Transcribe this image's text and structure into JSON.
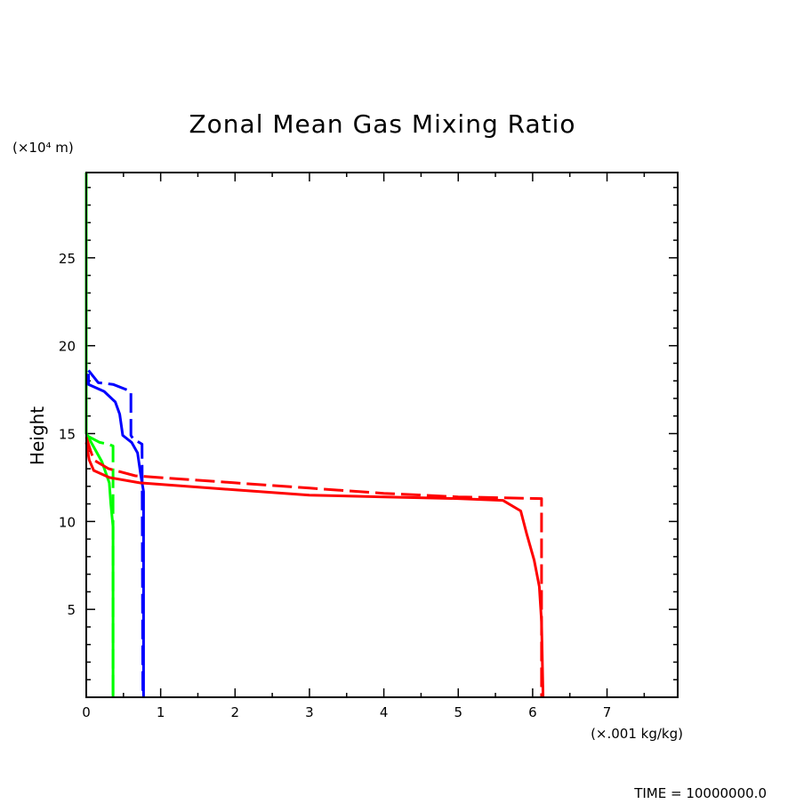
{
  "chart_data": {
    "type": "line",
    "title": "Zonal Mean Gas Mixing Ratio",
    "xlabel": "(×.001 kg/kg)",
    "ylabel": "Height",
    "yunit": "(×10⁴ m)",
    "xlim": [
      0,
      7.95
    ],
    "ylim": [
      0,
      29.85
    ],
    "xticks": [
      "0",
      "1",
      "2",
      "3",
      "4",
      "5",
      "6",
      "7"
    ],
    "yticks": [
      "5",
      "10",
      "15",
      "20",
      "25"
    ],
    "grid": false,
    "series": [
      {
        "color": "#00ff00",
        "style": "solid",
        "points": [
          [
            0,
            29.85
          ],
          [
            0,
            15.0
          ],
          [
            0.21,
            13.4
          ],
          [
            0.31,
            12.2
          ],
          [
            0.33,
            11.0
          ],
          [
            0.36,
            9.7
          ],
          [
            0.36,
            0
          ]
        ]
      },
      {
        "color": "#00ff00",
        "style": "dashed",
        "points": [
          [
            0,
            14.9
          ],
          [
            0.18,
            14.5
          ],
          [
            0.29,
            14.4
          ],
          [
            0.36,
            14.3
          ],
          [
            0.36,
            0
          ]
        ]
      },
      {
        "color": "#0000ff",
        "style": "solid",
        "points": [
          [
            0.03,
            18.4
          ],
          [
            0.03,
            17.8
          ],
          [
            0.24,
            17.4
          ],
          [
            0.39,
            16.8
          ],
          [
            0.45,
            16.1
          ],
          [
            0.49,
            14.9
          ],
          [
            0.61,
            14.5
          ],
          [
            0.69,
            13.9
          ],
          [
            0.73,
            12.7
          ],
          [
            0.77,
            11.7
          ],
          [
            0.77,
            0
          ]
        ]
      },
      {
        "color": "#0000ff",
        "style": "dashed",
        "points": [
          [
            0.03,
            18.6
          ],
          [
            0.16,
            17.9
          ],
          [
            0.36,
            17.8
          ],
          [
            0.6,
            17.4
          ],
          [
            0.6,
            14.9
          ],
          [
            0.63,
            14.7
          ],
          [
            0.75,
            14.4
          ],
          [
            0.76,
            0
          ]
        ]
      },
      {
        "color": "#ff0000",
        "style": "solid",
        "points": [
          [
            0,
            14.5
          ],
          [
            0.04,
            13.5
          ],
          [
            0.1,
            12.9
          ],
          [
            0.31,
            12.5
          ],
          [
            0.72,
            12.2
          ],
          [
            2,
            11.8
          ],
          [
            3,
            11.5
          ],
          [
            4,
            11.4
          ],
          [
            5,
            11.3
          ],
          [
            5.6,
            11.2
          ],
          [
            5.84,
            10.6
          ],
          [
            5.92,
            9.3
          ],
          [
            6.02,
            7.8
          ],
          [
            6.09,
            6.3
          ],
          [
            6.12,
            4.3
          ],
          [
            6.14,
            0
          ]
        ]
      },
      {
        "color": "#ff0000",
        "style": "dashed",
        "points": [
          [
            0,
            14.8
          ],
          [
            0.06,
            14.0
          ],
          [
            0.1,
            13.5
          ],
          [
            0.3,
            13.0
          ],
          [
            0.66,
            12.6
          ],
          [
            2,
            12.2
          ],
          [
            3,
            11.9
          ],
          [
            4,
            11.6
          ],
          [
            5,
            11.4
          ],
          [
            6.12,
            11.3
          ],
          [
            6.12,
            0
          ]
        ]
      }
    ]
  },
  "footer": {
    "time_label": "TIME = 10000000.0"
  }
}
